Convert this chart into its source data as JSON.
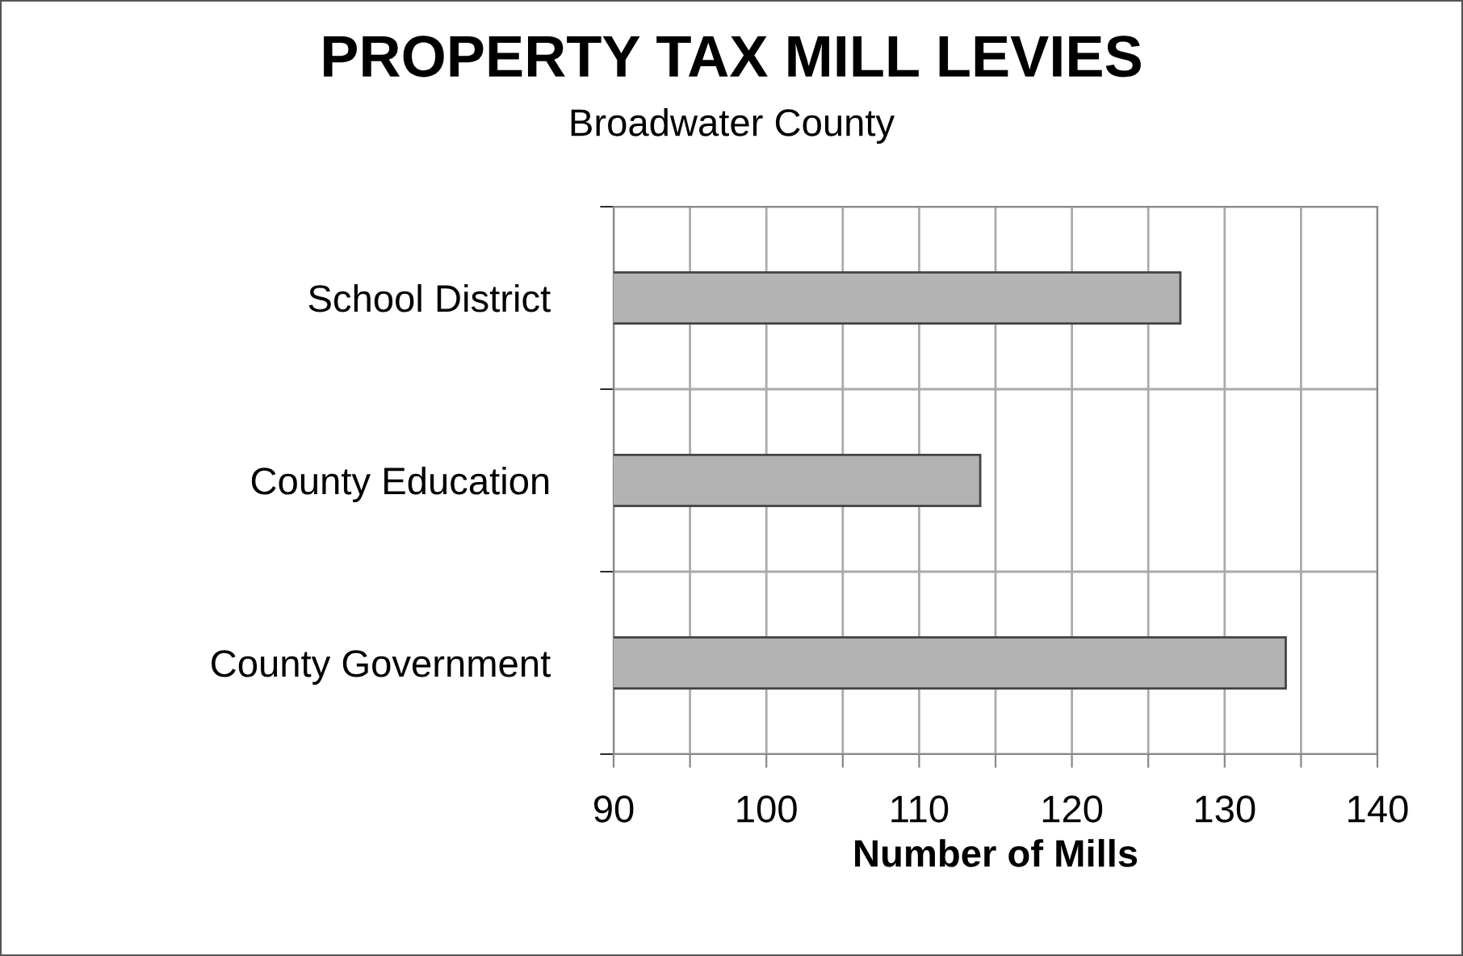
{
  "chart_data": {
    "type": "bar",
    "orientation": "horizontal",
    "title": "PROPERTY TAX MILL LEVIES",
    "subtitle": "Broadwater County",
    "xlabel": "Number of Mills",
    "categories": [
      "School District",
      "County Education",
      "County Government"
    ],
    "values": [
      127.1,
      114.0,
      134.0
    ],
    "color": "#b3b3b3",
    "xlim": [
      90,
      140
    ],
    "xticks": [
      90,
      {
        "value": 95,
        "label": null
      },
      100,
      {
        "value": 105,
        "label": null
      },
      110,
      {
        "value": 115,
        "label": null
      },
      120,
      {
        "value": 125,
        "label": null
      },
      130,
      {
        "value": 135,
        "label": null
      },
      140
    ],
    "grid": true
  }
}
